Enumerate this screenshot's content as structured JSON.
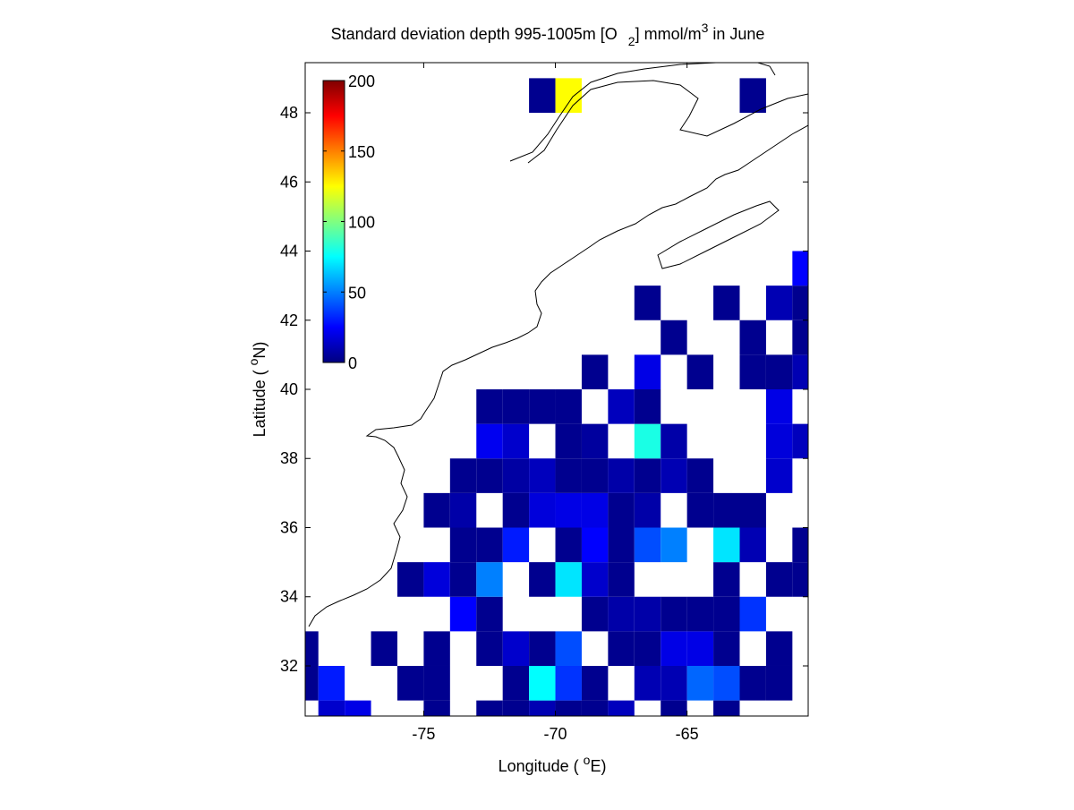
{
  "chart_data": {
    "type": "heatmap",
    "title": [
      "Standard deviation depth 995-1005m [O",
      "2",
      "] mmol/m",
      "3",
      " in June"
    ],
    "xlabel": [
      "Longitude ( ",
      "o",
      "E)"
    ],
    "ylabel": [
      "Latitude ( ",
      "o",
      "N)"
    ],
    "colormap": "jet",
    "x": [
      -79.5,
      -78.5,
      -77.5,
      -76.5,
      -75.5,
      -74.5,
      -73.5,
      -72.5,
      -71.5,
      -70.5,
      -69.5,
      -68.5,
      -67.5,
      -66.5,
      -65.5,
      -64.5,
      -63.5,
      -62.5,
      -61.5,
      -60.5
    ],
    "y": [
      30.5,
      31.5,
      32.5,
      33.5,
      34.5,
      35.5,
      36.5,
      37.5,
      38.5,
      39.5,
      40.5,
      41.5,
      42.5,
      43.5,
      44.5,
      45.5,
      46.5,
      47.5,
      48.5
    ],
    "z": [
      [
        null,
        15,
        20,
        null,
        null,
        3,
        null,
        3,
        3,
        10,
        3,
        3,
        12,
        null,
        3,
        null,
        3,
        null,
        null,
        null
      ],
      [
        3,
        30,
        null,
        null,
        3,
        3,
        null,
        null,
        3,
        75,
        35,
        3,
        null,
        10,
        10,
        45,
        40,
        3,
        3,
        null
      ],
      [
        3,
        null,
        null,
        3,
        null,
        3,
        null,
        3,
        15,
        3,
        40,
        null,
        3,
        3,
        20,
        20,
        3,
        null,
        3,
        null
      ],
      [
        null,
        null,
        null,
        null,
        null,
        null,
        25,
        3,
        null,
        null,
        null,
        3,
        8,
        8,
        3,
        3,
        3,
        35,
        null,
        null
      ],
      [
        null,
        null,
        null,
        null,
        3,
        18,
        3,
        50,
        null,
        3,
        70,
        15,
        3,
        null,
        null,
        null,
        3,
        null,
        3,
        3
      ],
      [
        null,
        null,
        null,
        null,
        null,
        null,
        3,
        3,
        30,
        null,
        3,
        25,
        3,
        40,
        50,
        null,
        70,
        10,
        null,
        3
      ],
      [
        null,
        null,
        null,
        null,
        null,
        3,
        8,
        null,
        3,
        18,
        20,
        20,
        3,
        8,
        null,
        3,
        3,
        3,
        null,
        null
      ],
      [
        null,
        null,
        null,
        null,
        null,
        null,
        3,
        3,
        7,
        12,
        3,
        3,
        8,
        3,
        10,
        3,
        null,
        null,
        15,
        null
      ],
      [
        null,
        null,
        null,
        null,
        null,
        null,
        null,
        22,
        15,
        null,
        3,
        6,
        null,
        80,
        8,
        null,
        null,
        null,
        18,
        12
      ],
      [
        null,
        null,
        null,
        null,
        null,
        null,
        null,
        3,
        3,
        3,
        3,
        null,
        12,
        3,
        null,
        null,
        null,
        null,
        20,
        null
      ],
      [
        null,
        null,
        null,
        null,
        null,
        null,
        null,
        null,
        null,
        null,
        null,
        3,
        null,
        20,
        null,
        3,
        null,
        3,
        3,
        10
      ],
      [
        null,
        null,
        null,
        null,
        null,
        null,
        null,
        null,
        null,
        null,
        null,
        null,
        null,
        null,
        3,
        null,
        null,
        3,
        null,
        3
      ],
      [
        null,
        null,
        null,
        null,
        null,
        null,
        null,
        null,
        null,
        null,
        null,
        null,
        null,
        3,
        null,
        null,
        3,
        null,
        10,
        3
      ],
      [
        null,
        null,
        null,
        null,
        null,
        null,
        null,
        null,
        null,
        null,
        null,
        null,
        null,
        null,
        null,
        null,
        null,
        null,
        null,
        25
      ],
      [
        null,
        null,
        null,
        null,
        null,
        null,
        null,
        null,
        null,
        null,
        null,
        null,
        null,
        null,
        null,
        null,
        null,
        null,
        null,
        null
      ],
      [
        null,
        null,
        null,
        null,
        null,
        null,
        null,
        null,
        null,
        null,
        null,
        null,
        null,
        null,
        null,
        null,
        null,
        null,
        null,
        null
      ],
      [
        null,
        null,
        null,
        null,
        null,
        null,
        null,
        null,
        null,
        null,
        null,
        null,
        null,
        null,
        null,
        null,
        null,
        null,
        null,
        null
      ],
      [
        null,
        null,
        null,
        null,
        null,
        null,
        null,
        null,
        null,
        null,
        null,
        null,
        null,
        null,
        null,
        null,
        null,
        null,
        null,
        null
      ],
      [
        null,
        null,
        null,
        null,
        null,
        null,
        null,
        null,
        null,
        3,
        125,
        null,
        null,
        null,
        null,
        null,
        null,
        3,
        null,
        null
      ]
    ],
    "xlim": [
      -79.5,
      -60.4
    ],
    "ylim": [
      30.55,
      49.45
    ],
    "xticks": [
      -75,
      -70,
      -65
    ],
    "yticks": [
      32,
      34,
      36,
      38,
      40,
      42,
      44,
      46,
      48
    ],
    "colorbar": {
      "lim": [
        0,
        200
      ],
      "ticks": [
        0,
        50,
        100,
        150,
        200
      ]
    }
  }
}
